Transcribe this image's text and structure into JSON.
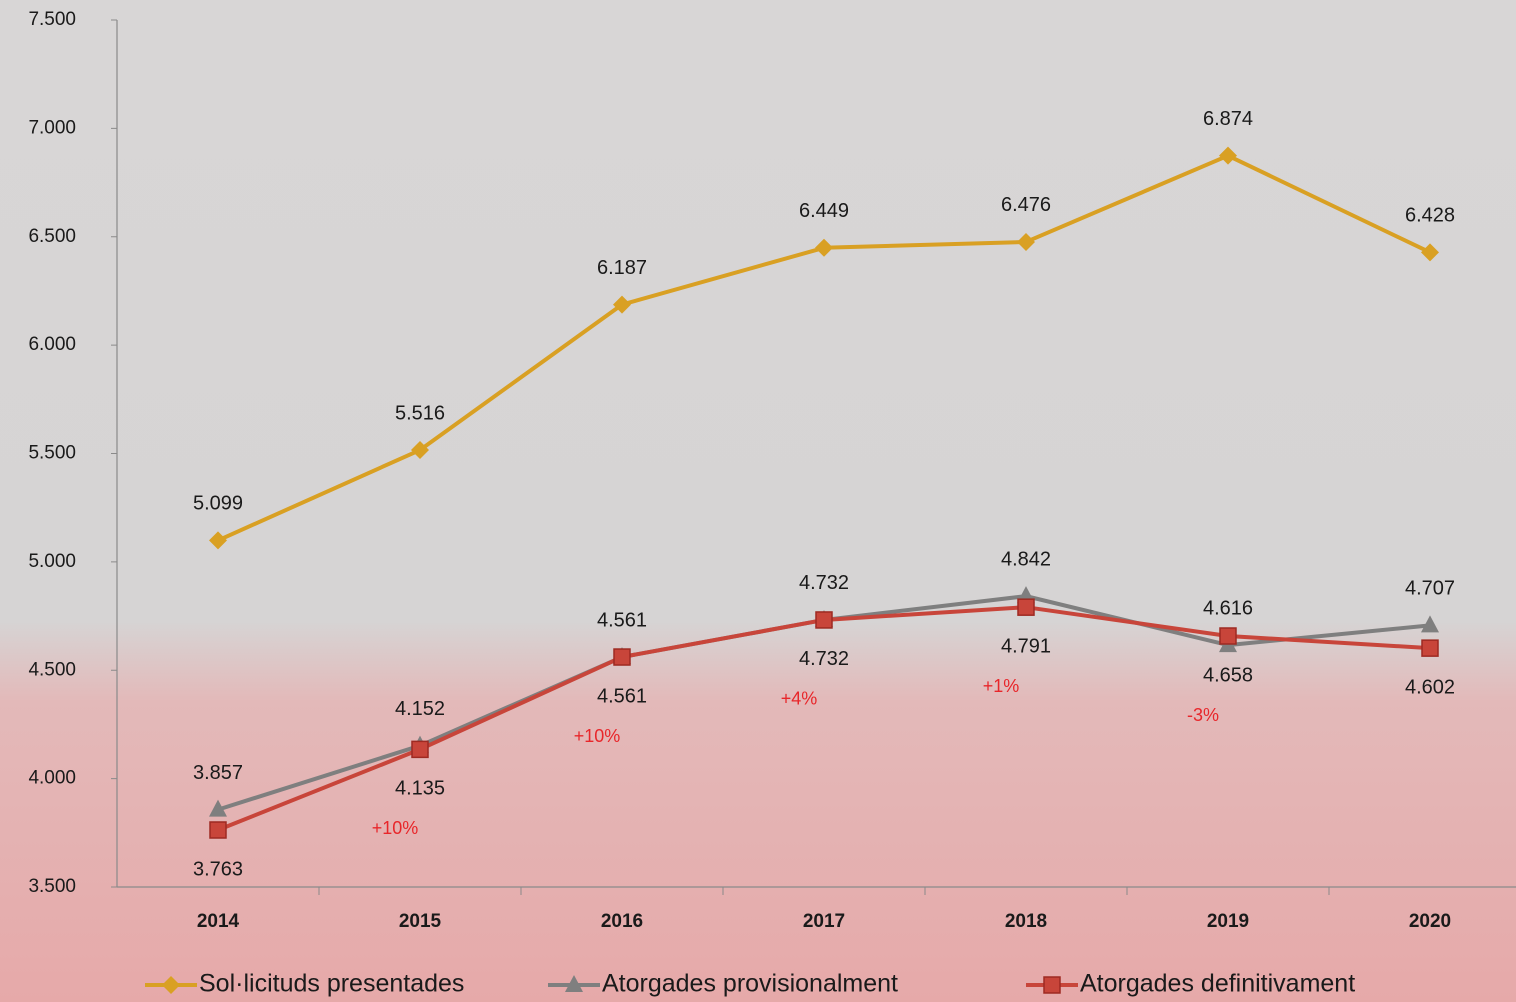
{
  "chart_data": {
    "type": "line",
    "categories": [
      "2014",
      "2015",
      "2016",
      "2017",
      "2018",
      "2019",
      "2020"
    ],
    "series": [
      {
        "name": "Sol·licituds presentades",
        "color": "#d9a023",
        "marker": "diamond",
        "values": [
          5099,
          5516,
          6187,
          6449,
          6476,
          6874,
          6428
        ],
        "value_labels": [
          "5.099",
          "5.516",
          "6.187",
          "6.449",
          "6.476",
          "6.874",
          "6.428"
        ]
      },
      {
        "name": "Atorgades provisionalment",
        "color": "#7f7f7f",
        "marker": "triangle",
        "values": [
          3857,
          4152,
          4561,
          4732,
          4842,
          4616,
          4707
        ],
        "value_labels": [
          "3.857",
          "4.152",
          "4.561",
          "4.732",
          "4.842",
          "4.616",
          "4.707"
        ]
      },
      {
        "name": "Atorgades definitivament",
        "color": "#c8453a",
        "marker": "square",
        "values": [
          3763,
          4135,
          4561,
          4732,
          4791,
          4658,
          4602
        ],
        "value_labels": [
          "3.763",
          "4.135",
          "4.561",
          "4.732",
          "4.791",
          "4.658",
          "4.602"
        ]
      }
    ],
    "ylim": [
      3500,
      7500
    ],
    "yticks": [
      {
        "value": 3500,
        "label": "3.500"
      },
      {
        "value": 4000,
        "label": "4.000"
      },
      {
        "value": 4500,
        "label": "4.500"
      },
      {
        "value": 5000,
        "label": "5.000"
      },
      {
        "value": 5500,
        "label": "5.500"
      },
      {
        "value": 6000,
        "label": "6.000"
      },
      {
        "value": 6500,
        "label": "6.500"
      },
      {
        "value": 7000,
        "label": "7.000"
      },
      {
        "value": 7500,
        "label": "7.500"
      }
    ],
    "annotations": [
      {
        "x": "2015",
        "text": "+10%"
      },
      {
        "x": "2016",
        "text": "+10%"
      },
      {
        "x": "2017",
        "text": "+4%"
      },
      {
        "x": "2018",
        "text": "+1%"
      },
      {
        "x": "2019",
        "text": "-3%"
      }
    ],
    "annotation_color": "#e8262a",
    "legend": "bottom"
  }
}
